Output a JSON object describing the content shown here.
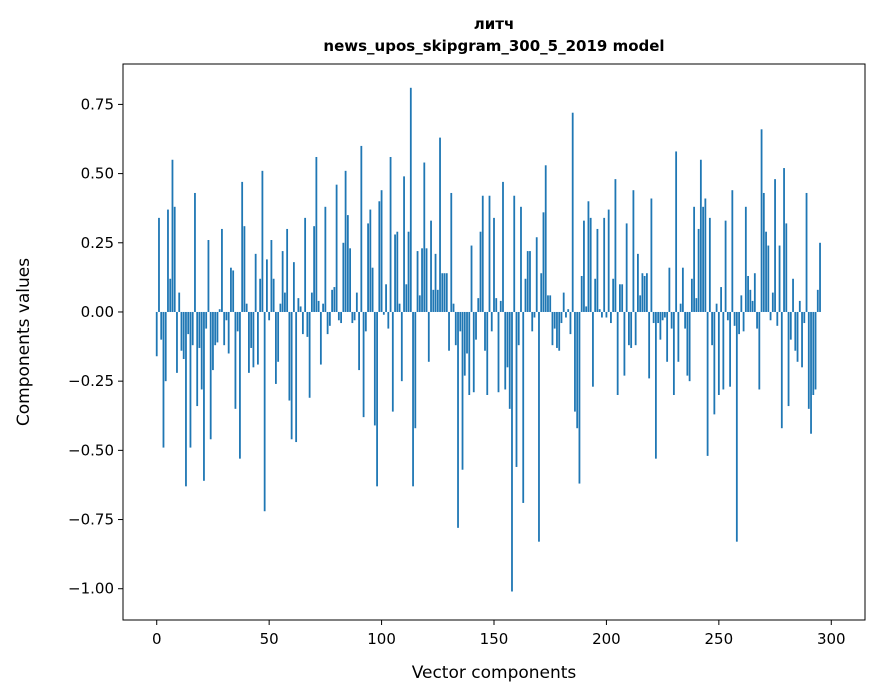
{
  "chart_data": {
    "type": "bar",
    "title": "литч",
    "subtitle": "news_upos_skipgram_300_5_2019 model",
    "xlabel": "Vector components",
    "ylabel": "Components values",
    "xlim": [
      -15,
      315
    ],
    "ylim": [
      -1.113,
      0.896
    ],
    "xticks": [
      0,
      50,
      100,
      150,
      200,
      250,
      300
    ],
    "xtick_labels": [
      "0",
      "50",
      "100",
      "150",
      "200",
      "250",
      "300"
    ],
    "yticks": [
      -1.0,
      -0.75,
      -0.5,
      -0.25,
      0.0,
      0.25,
      0.5,
      0.75
    ],
    "ytick_labels": [
      "−1.00",
      "−0.75",
      "−0.50",
      "−0.25",
      "0.00",
      "0.25",
      "0.50",
      "0.75"
    ],
    "grid": false,
    "bar_color": "#1f77b4",
    "values": [
      -0.16,
      0.34,
      -0.1,
      -0.49,
      -0.25,
      0.37,
      0.12,
      0.55,
      0.38,
      -0.22,
      0.07,
      -0.14,
      -0.17,
      -0.63,
      -0.08,
      -0.49,
      -0.12,
      0.43,
      -0.34,
      -0.13,
      -0.28,
      -0.61,
      -0.06,
      0.26,
      -0.46,
      -0.21,
      -0.12,
      -0.11,
      0.01,
      0.3,
      -0.12,
      -0.03,
      -0.15,
      0.16,
      0.15,
      -0.35,
      -0.07,
      -0.53,
      0.47,
      0.31,
      0.03,
      -0.22,
      -0.13,
      -0.2,
      0.21,
      -0.19,
      0.12,
      0.51,
      -0.72,
      0.19,
      -0.03,
      0.26,
      0.12,
      -0.26,
      -0.18,
      0.03,
      0.22,
      0.07,
      0.3,
      -0.32,
      -0.46,
      0.18,
      -0.47,
      0.05,
      0.02,
      -0.08,
      0.34,
      -0.09,
      -0.31,
      0.07,
      0.31,
      0.56,
      0.04,
      -0.19,
      0.03,
      0.38,
      -0.08,
      -0.05,
      0.08,
      0.09,
      0.46,
      -0.03,
      -0.04,
      0.25,
      0.51,
      0.35,
      0.23,
      -0.04,
      -0.03,
      0.07,
      -0.21,
      0.6,
      -0.38,
      -0.07,
      0.32,
      0.37,
      0.16,
      -0.41,
      -0.63,
      0.4,
      0.44,
      -0.01,
      0.1,
      -0.06,
      0.56,
      -0.36,
      0.28,
      0.29,
      0.03,
      -0.25,
      0.49,
      0.1,
      0.29,
      0.81,
      -0.63,
      -0.42,
      0.22,
      0.06,
      0.23,
      0.54,
      0.23,
      -0.18,
      0.33,
      0.08,
      0.21,
      0.08,
      0.63,
      0.14,
      0.14,
      0.14,
      -0.14,
      0.43,
      0.03,
      -0.12,
      -0.78,
      -0.07,
      -0.57,
      -0.23,
      -0.15,
      -0.3,
      0.24,
      -0.29,
      -0.1,
      0.05,
      0.29,
      0.42,
      -0.14,
      -0.3,
      0.42,
      -0.07,
      0.34,
      0.05,
      -0.29,
      0.04,
      0.47,
      -0.28,
      -0.2,
      -0.35,
      -1.01,
      0.42,
      -0.56,
      -0.12,
      0.38,
      -0.69,
      0.12,
      0.22,
      0.22,
      -0.07,
      -0.02,
      0.27,
      -0.83,
      0.14,
      0.36,
      0.53,
      0.06,
      0.06,
      -0.12,
      -0.06,
      -0.13,
      -0.14,
      -0.04,
      0.07,
      -0.02,
      0.01,
      -0.08,
      0.72,
      -0.36,
      -0.42,
      -0.62,
      0.13,
      0.33,
      0.02,
      0.4,
      0.34,
      -0.27,
      0.12,
      0.3,
      0.01,
      -0.02,
      0.34,
      -0.02,
      0.37,
      -0.04,
      0.12,
      0.48,
      -0.3,
      0.1,
      0.1,
      -0.23,
      0.32,
      -0.12,
      -0.13,
      0.44,
      -0.12,
      0.21,
      0.06,
      0.14,
      0.13,
      0.14,
      -0.24,
      0.41,
      -0.04,
      -0.53,
      -0.04,
      -0.1,
      -0.03,
      -0.02,
      -0.18,
      0.16,
      -0.06,
      -0.3,
      0.58,
      -0.18,
      0.03,
      0.16,
      -0.06,
      -0.23,
      -0.25,
      0.12,
      0.38,
      0.05,
      0.3,
      0.55,
      0.38,
      0.41,
      -0.52,
      0.34,
      -0.12,
      -0.37,
      0.03,
      -0.3,
      0.09,
      -0.28,
      0.33,
      -0.03,
      -0.27,
      0.44,
      -0.05,
      -0.83,
      -0.08,
      0.06,
      -0.07,
      0.38,
      0.13,
      0.08,
      0.04,
      0.14,
      -0.06,
      -0.28,
      0.66,
      0.43,
      0.29,
      0.24,
      -0.03,
      0.07,
      0.48,
      -0.05,
      0.24,
      -0.42,
      0.52,
      0.32,
      -0.34,
      -0.1,
      0.12,
      -0.14,
      -0.18,
      0.04,
      -0.2,
      -0.04,
      0.43,
      -0.35,
      -0.44,
      -0.3,
      -0.28,
      0.08,
      0.25
    ]
  }
}
